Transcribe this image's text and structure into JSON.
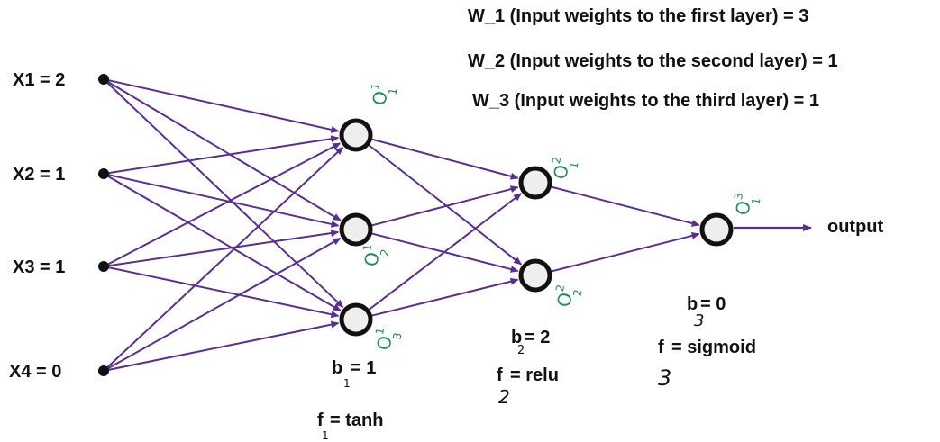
{
  "colors": {
    "edge": "#5b2d8e",
    "node_ring": "#111111",
    "node_fill": "#eeeeee",
    "input_dot": "#111111",
    "annotation": "#1f8a5a",
    "text": "#111111"
  },
  "weights": {
    "w1": "W_1 (Input weights to the first layer) = 3",
    "w2": "W_2 (Input weights to the second layer) = 1",
    "w3": "W_3 (Input weights to the third layer) = 1"
  },
  "inputs": {
    "x1": "X1 = 2",
    "x2": "X2 = 1",
    "x3": "X3 = 1",
    "x4": "X4 = 0"
  },
  "output_label": "output",
  "layer1": {
    "nodes": [
      {
        "label": "O",
        "sup": "1",
        "sub": "1"
      },
      {
        "label": "O",
        "sup": "1",
        "sub": "2"
      },
      {
        "label": "O",
        "sup": "1",
        "sub": "3"
      }
    ],
    "bias_main": "b",
    "bias_value": "= 1",
    "bias_sub": "1",
    "f_main": "f",
    "f_value": "= tanh",
    "f_sub": "1"
  },
  "layer2": {
    "nodes": [
      {
        "label": "O",
        "sup": "2",
        "sub": "1"
      },
      {
        "label": "O",
        "sup": "2",
        "sub": "2"
      }
    ],
    "bias_main": "b",
    "bias_value": "= 2",
    "bias_sub": "2",
    "f_main": "f",
    "f_value": "= relu",
    "f_sub": "2"
  },
  "layer3": {
    "nodes": [
      {
        "label": "O",
        "sup": "3",
        "sub": "1"
      }
    ],
    "bias_main": "b",
    "bias_value": "= 0",
    "bias_sub": "3",
    "f_main": "f",
    "f_value": "= sigmoid",
    "f_sub": "3"
  }
}
